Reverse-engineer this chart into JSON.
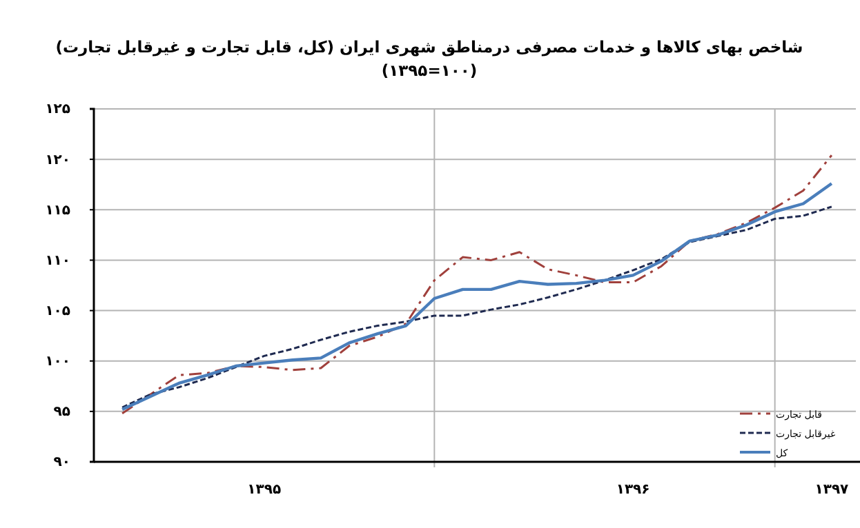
{
  "chart_data": {
    "type": "line",
    "title": "شاخص بهای کالاها و خدمات مصرفی  درمناطق شهری ایران (کل، قابل تجارت و غیرقابل تجارت)",
    "subtitle": "(۱۰۰=۱۳۹۵)",
    "categories": [
      null,
      null,
      null,
      null,
      null,
      "۱۳۹۵",
      null,
      null,
      null,
      null,
      null,
      null,
      null,
      null,
      null,
      null,
      null,
      null,
      "۱۳۹۶",
      null,
      null,
      null,
      null,
      null,
      null,
      "۱۳۹۷"
    ],
    "ylim": [
      90,
      125
    ],
    "yticks": [
      {
        "value": 90,
        "label": "۹۰"
      },
      {
        "value": 95,
        "label": "۹۵"
      },
      {
        "value": 100,
        "label": "۱۰۰"
      },
      {
        "value": 105,
        "label": "۱۰۵"
      },
      {
        "value": 110,
        "label": "۱۱۰"
      },
      {
        "value": 115,
        "label": "۱۱۵"
      },
      {
        "value": 120,
        "label": "۱۲۰"
      },
      {
        "value": 125,
        "label": "۱۲۵"
      }
    ],
    "grid": true,
    "legend": "bottom right",
    "series": [
      {
        "name": "قابل تجارت",
        "color": "#a0403c",
        "line_style": "dashed",
        "values": [
          94.8,
          96.7,
          98.6,
          98.8,
          99.5,
          99.4,
          99.1,
          99.3,
          101.5,
          102.4,
          103.7,
          108.0,
          110.3,
          110.0,
          110.8,
          109.1,
          108.5,
          107.8,
          107.8,
          109.4,
          111.9,
          112.6,
          113.7,
          115.2,
          116.9,
          120.4
        ]
      },
      {
        "name": "غیرقابل تجارت",
        "color": "#1f2a50",
        "line_style": "dotted",
        "values": [
          95.4,
          96.7,
          97.4,
          98.3,
          99.4,
          100.5,
          101.2,
          102.1,
          102.9,
          103.5,
          103.9,
          104.5,
          104.5,
          105.1,
          105.6,
          106.3,
          107.1,
          108.0,
          109.0,
          110.1,
          111.8,
          112.4,
          113.0,
          114.1,
          114.4,
          115.3
        ]
      },
      {
        "name": "کل",
        "color": "#4a7ebb",
        "line_style": "solid",
        "values": [
          95.2,
          96.5,
          97.8,
          98.6,
          99.5,
          99.8,
          100.1,
          100.3,
          101.8,
          102.7,
          103.5,
          106.2,
          107.1,
          107.1,
          107.9,
          107.6,
          107.7,
          108.0,
          108.5,
          109.9,
          111.9,
          112.5,
          113.5,
          114.8,
          115.6,
          117.6
        ]
      }
    ]
  }
}
